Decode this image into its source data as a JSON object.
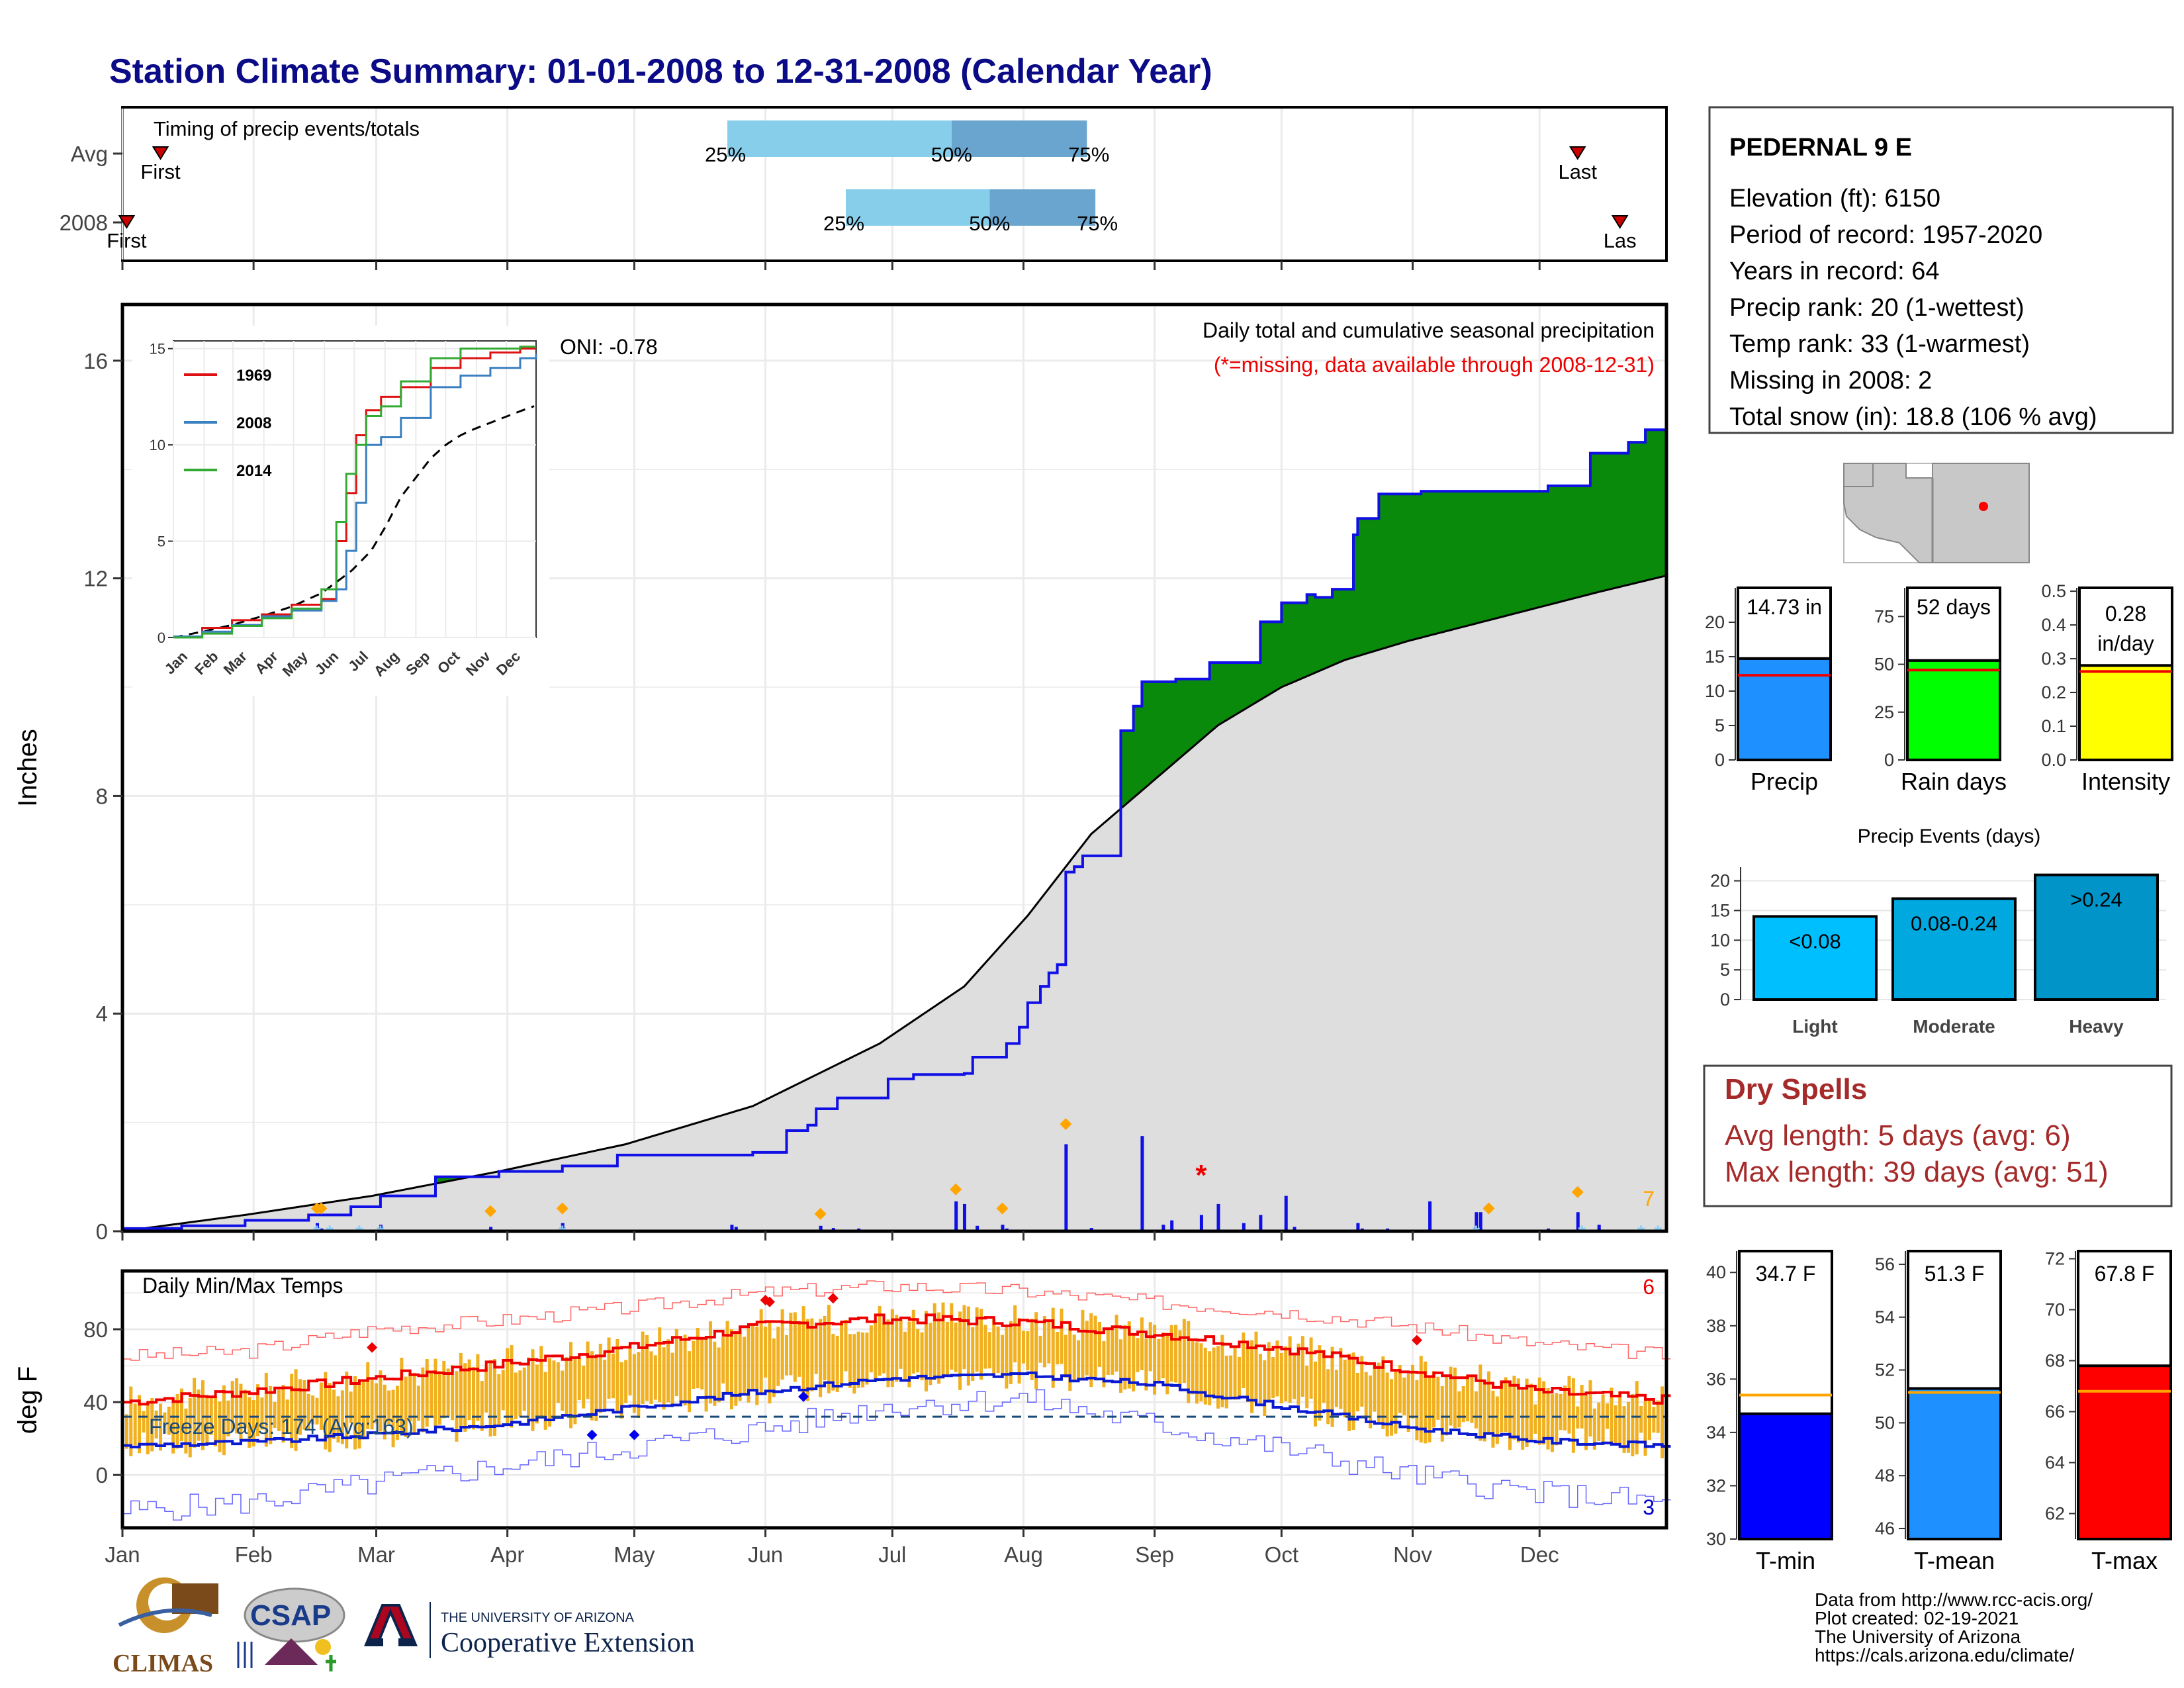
{
  "title": "Station Climate Summary: 01-01-2008 to 12-31-2008 (Calendar Year)",
  "colors": {
    "title": "#0b0b87",
    "observed_green": "#0a8a0a",
    "below_brown": "#8b5a10",
    "normal_gray": "#dedede",
    "precip_blue": "#1010e6",
    "light_blue": "#87ceeb",
    "mid_blue": "#6aa5cf",
    "temp_bar": "#f0b020",
    "tmax_red": "#ee0000",
    "tmin_blue": "#0a1ad0",
    "dry_red": "#a52a2a"
  },
  "timing_panel": {
    "title": "Timing of precip events/totals",
    "rows": [
      {
        "label": "Avg",
        "first_label": "First",
        "last_label": "Last",
        "first_day": 10,
        "last_day": 345,
        "q25_label": "25%",
        "q50_label": "50%",
        "q75_label": "75%",
        "q25_day": 144,
        "q50_day": 197,
        "q75_day": 229
      },
      {
        "label": "2008",
        "first_label": "First",
        "last_label": "Las",
        "first_day": 2,
        "last_day": 355,
        "q25_label": "25%",
        "q50_label": "50%",
        "q75_label": "75%",
        "q25_day": 172,
        "q50_day": 206,
        "q75_day": 231
      }
    ]
  },
  "precip_panel": {
    "ylabel": "Inches",
    "yticks": [
      "0",
      "4",
      "8",
      "12",
      "16"
    ],
    "oni": "ONI: -0.78",
    "note1": "Daily total and cumulative seasonal precipitation",
    "note2": "(*=missing, data available through 2008-12-31)",
    "corner_count": "7",
    "snow_marker": "*"
  },
  "inset": {
    "yticks": [
      "0",
      "5",
      "10",
      "15"
    ],
    "months": [
      "Jan",
      "Feb",
      "Mar",
      "Apr",
      "May",
      "Jun",
      "Jul",
      "Aug",
      "Sep",
      "Oct",
      "Nov",
      "Dec"
    ],
    "legend": [
      {
        "name": "1969",
        "color": "#dd1111"
      },
      {
        "name": "2008",
        "color": "#3a7fc0"
      },
      {
        "name": "2014",
        "color": "#33aa33"
      }
    ]
  },
  "temp_panel": {
    "title": "Daily Min/Max Temps",
    "ylabel": "deg F",
    "yticks": [
      "0",
      "40",
      "80"
    ],
    "freeze": "Freeze Days: 174 (Avg:163)",
    "record_high_count": "6",
    "record_low_count": "3",
    "freeze_line": 32
  },
  "months": [
    "Jan",
    "Feb",
    "Mar",
    "Apr",
    "May",
    "Jun",
    "Jul",
    "Aug",
    "Sep",
    "Oct",
    "Nov",
    "Dec"
  ],
  "station": {
    "name": "PEDERNAL 9 E",
    "lines": [
      "Elevation (ft): 6150",
      "Period of record: 1957-2020",
      "Years in record: 64",
      "Precip rank: 20 (1-wettest)",
      "Temp rank: 33 (1-warmest)",
      "Missing in 2008: 2",
      "Total snow (in): 18.8 (106 % avg)"
    ]
  },
  "summary_bars": [
    {
      "label": "Precip",
      "value_label": "14.73 in",
      "value": 14.73,
      "avg": 12.3,
      "ymax": 25,
      "ticks": [
        "0",
        "5",
        "10",
        "15",
        "20"
      ],
      "tickvals": [
        0,
        5,
        10,
        15,
        20
      ],
      "color": "#1e90ff"
    },
    {
      "label": "Rain days",
      "value_label": "52 days",
      "value": 52,
      "avg": 47,
      "ymax": 90,
      "ticks": [
        "0",
        "25",
        "50",
        "75"
      ],
      "tickvals": [
        0,
        25,
        50,
        75
      ],
      "color": "#00ff00"
    },
    {
      "label": "Intensity",
      "value_label": "0.28",
      "value_label2": "in/day",
      "value": 0.28,
      "avg": 0.262,
      "ymax": 0.51,
      "ticks": [
        "0.0",
        "0.1",
        "0.2",
        "0.3",
        "0.4",
        "0.5"
      ],
      "tickvals": [
        0,
        0.1,
        0.2,
        0.3,
        0.4,
        0.5
      ],
      "color": "#ffff00"
    }
  ],
  "events": {
    "title": "Precip Events (days)",
    "ticks": [
      "0",
      "5",
      "10",
      "15",
      "20"
    ],
    "bars": [
      {
        "category": "Light",
        "range": "<0.08",
        "value": 14,
        "color": "#00bfff"
      },
      {
        "category": "Moderate",
        "range": "0.08-0.24",
        "value": 17,
        "color": "#00a8e0"
      },
      {
        "category": "Heavy",
        "range": ">0.24",
        "value": 21,
        "color": "#0094c8"
      }
    ]
  },
  "dry_spells": {
    "title": "Dry Spells",
    "avg": "Avg length: 5 days (avg: 6)",
    "max": "Max length: 39 days (avg: 51)"
  },
  "temp_bars": [
    {
      "label": "T-min",
      "value_label": "34.7 F",
      "value": 34.7,
      "avg": 35.4,
      "ymin": 30,
      "ymax": 40.8,
      "ticks": [
        "30",
        "32",
        "34",
        "36",
        "38",
        "40"
      ],
      "tickvals": [
        30,
        32,
        34,
        36,
        38,
        40
      ],
      "color": "#0000ff"
    },
    {
      "label": "T-mean",
      "value_label": "51.3 F",
      "value": 51.3,
      "avg": 51.15,
      "ymin": 45.6,
      "ymax": 56.5,
      "ticks": [
        "46",
        "48",
        "50",
        "52",
        "54",
        "56"
      ],
      "tickvals": [
        46,
        48,
        50,
        52,
        54,
        56
      ],
      "color": "#1e90ff"
    },
    {
      "label": "T-max",
      "value_label": "67.8 F",
      "value": 67.8,
      "avg": 66.8,
      "ymin": 61,
      "ymax": 72.3,
      "ticks": [
        "62",
        "64",
        "66",
        "68",
        "70",
        "72"
      ],
      "tickvals": [
        62,
        64,
        66,
        68,
        70,
        72
      ],
      "color": "#ff0000"
    }
  ],
  "footer": {
    "lines": [
      "Data from http://www.rcc-acis.org/",
      "Plot created: 02-19-2021",
      "The University of Arizona",
      "https://cals.arizona.edu/climate/"
    ]
  },
  "logos": {
    "climas": "CLIMAS",
    "csap": "CSAP",
    "ua_line1": "THE UNIVERSITY OF ARIZONA",
    "ua_line2": "Cooperative Extension"
  },
  "chart_data": [
    {
      "type": "line",
      "title": "Daily total and cumulative seasonal precipitation",
      "ylabel": "Inches",
      "ylim": [
        0,
        16
      ],
      "x_units": "day of year 2008",
      "series": [
        {
          "name": "2008",
          "x": [
            1,
            15,
            30,
            45,
            55,
            62,
            75,
            90,
            105,
            110,
            118,
            130,
            140,
            150,
            158,
            163,
            165,
            170,
            182,
            188,
            200,
            202,
            210,
            213,
            215,
            218,
            220,
            222,
            224,
            226,
            228,
            230,
            237,
            240,
            242,
            250,
            258,
            270,
            275,
            281,
            283,
            287,
            292,
            293,
            298,
            308,
            318,
            328,
            338,
            348,
            357,
            361,
            366
          ],
          "y": [
            0.05,
            0.1,
            0.2,
            0.3,
            0.45,
            0.65,
            1.0,
            1.1,
            1.2,
            1.2,
            1.4,
            1.4,
            1.4,
            1.45,
            1.85,
            1.95,
            2.25,
            2.45,
            2.8,
            2.88,
            2.9,
            3.2,
            3.45,
            3.75,
            4.2,
            4.5,
            4.75,
            4.9,
            6.6,
            6.7,
            6.9,
            6.9,
            9.2,
            9.65,
            10.1,
            10.15,
            10.45,
            11.2,
            11.55,
            11.7,
            11.65,
            11.8,
            12.8,
            13.1,
            13.55,
            13.6,
            13.6,
            13.6,
            13.7,
            14.3,
            14.5,
            14.73,
            14.73
          ]
        }
      ],
      "normal_cumulative": {
        "x": [
          1,
          30,
          60,
          90,
          120,
          150,
          180,
          200,
          215,
          230,
          245,
          260,
          275,
          290,
          305,
          320,
          335,
          350,
          366
        ],
        "y": [
          0,
          0.3,
          0.65,
          1.1,
          1.6,
          2.3,
          3.45,
          4.5,
          5.8,
          7.3,
          8.3,
          9.3,
          10.0,
          10.5,
          10.85,
          11.15,
          11.45,
          11.75,
          12.05
        ]
      },
      "daily_precip_bars": {
        "x": [
          47,
          48,
          62,
          88,
          105,
          145,
          146,
          166,
          169,
          175,
          198,
          200,
          203,
          209,
          210,
          224,
          230,
          242,
          247,
          249,
          256,
          260,
          266,
          270,
          278,
          276,
          293,
          294,
          300,
          310,
          321,
          322,
          338,
          345,
          350
        ],
        "y": [
          0.15,
          0.05,
          0.12,
          0.08,
          0.15,
          0.12,
          0.08,
          0.1,
          0.06,
          0.05,
          0.55,
          0.5,
          0.1,
          0.12,
          0.05,
          1.6,
          0.06,
          1.75,
          0.12,
          0.2,
          0.3,
          0.5,
          0.15,
          0.3,
          0.08,
          0.65,
          0.15,
          0.05,
          0.05,
          0.55,
          0.35,
          0.35,
          0.05,
          0.35,
          0.12
        ]
      }
    },
    {
      "type": "line",
      "title": "Daily Min/Max Temps",
      "ylabel": "deg F",
      "ylim": [
        -30,
        110
      ],
      "x_units": "day of year 2008",
      "series": [
        {
          "name": "normal max",
          "x": [
            1,
            31,
            60,
            91,
            121,
            152,
            182,
            213,
            244,
            274,
            305,
            335,
            366
          ],
          "y": [
            40,
            46,
            53,
            61,
            70,
            82,
            86,
            84,
            78,
            70,
            58,
            46,
            41
          ]
        },
        {
          "name": "normal min",
          "x": [
            1,
            31,
            60,
            91,
            121,
            152,
            182,
            213,
            244,
            274,
            305,
            335,
            366
          ],
          "y": [
            16,
            18,
            22,
            28,
            37,
            46,
            53,
            55,
            50,
            38,
            26,
            19,
            16
          ]
        },
        {
          "name": "record max",
          "x": [
            1,
            31,
            60,
            91,
            121,
            152,
            182,
            213,
            244,
            274,
            305,
            335,
            366
          ],
          "y": [
            65,
            68,
            80,
            85,
            92,
            100,
            104,
            101,
            95,
            90,
            82,
            72,
            66
          ]
        },
        {
          "name": "record min",
          "x": [
            1,
            31,
            60,
            91,
            121,
            152,
            182,
            213,
            244,
            274,
            305,
            335,
            366
          ],
          "y": [
            -20,
            -15,
            -5,
            5,
            15,
            25,
            38,
            42,
            28,
            15,
            0,
            -10,
            -15
          ]
        }
      ],
      "freeze_line": 32,
      "freeze_days": 174,
      "freeze_days_avg": 163
    },
    {
      "type": "line",
      "title": "Cumulative precipitation (inset)",
      "ylim": [
        0,
        15
      ],
      "series": [
        {
          "name": "1969",
          "x": [
            1,
            30,
            60,
            90,
            120,
            150,
            165,
            175,
            185,
            195,
            210,
            230,
            260,
            290,
            320,
            350,
            366
          ],
          "y": [
            0,
            0.5,
            0.9,
            1.2,
            1.7,
            2.0,
            5.0,
            7.5,
            10.5,
            11.8,
            12.5,
            13.0,
            14.0,
            14.5,
            14.8,
            15.0,
            15.0
          ]
        },
        {
          "name": "2008",
          "x": [
            1,
            30,
            60,
            90,
            120,
            150,
            165,
            175,
            185,
            195,
            210,
            230,
            260,
            290,
            320,
            350,
            366
          ],
          "y": [
            0.05,
            0.3,
            0.65,
            1.1,
            1.4,
            1.9,
            2.5,
            4.5,
            7.0,
            10.0,
            10.4,
            11.4,
            13.0,
            13.6,
            14.0,
            14.5,
            14.73
          ]
        },
        {
          "name": "2014",
          "x": [
            1,
            30,
            60,
            90,
            120,
            150,
            165,
            175,
            185,
            195,
            210,
            230,
            260,
            290,
            320,
            350,
            366
          ],
          "y": [
            0,
            0.2,
            0.6,
            1.0,
            1.5,
            2.5,
            6.0,
            8.5,
            10.0,
            11.5,
            12.0,
            13.3,
            14.5,
            15.0,
            15.0,
            15.1,
            15.1
          ]
        }
      ]
    },
    {
      "type": "bar",
      "title": "Precip Events (days)",
      "categories": [
        "Light",
        "Moderate",
        "Heavy"
      ],
      "values": [
        14,
        17,
        21
      ]
    },
    {
      "type": "bar",
      "categories": [
        "Precip",
        "Rain days",
        "Intensity"
      ],
      "values": [
        14.73,
        52,
        0.28
      ]
    },
    {
      "type": "bar",
      "categories": [
        "T-min",
        "T-mean",
        "T-max"
      ],
      "values": [
        34.7,
        51.3,
        67.8
      ]
    }
  ]
}
